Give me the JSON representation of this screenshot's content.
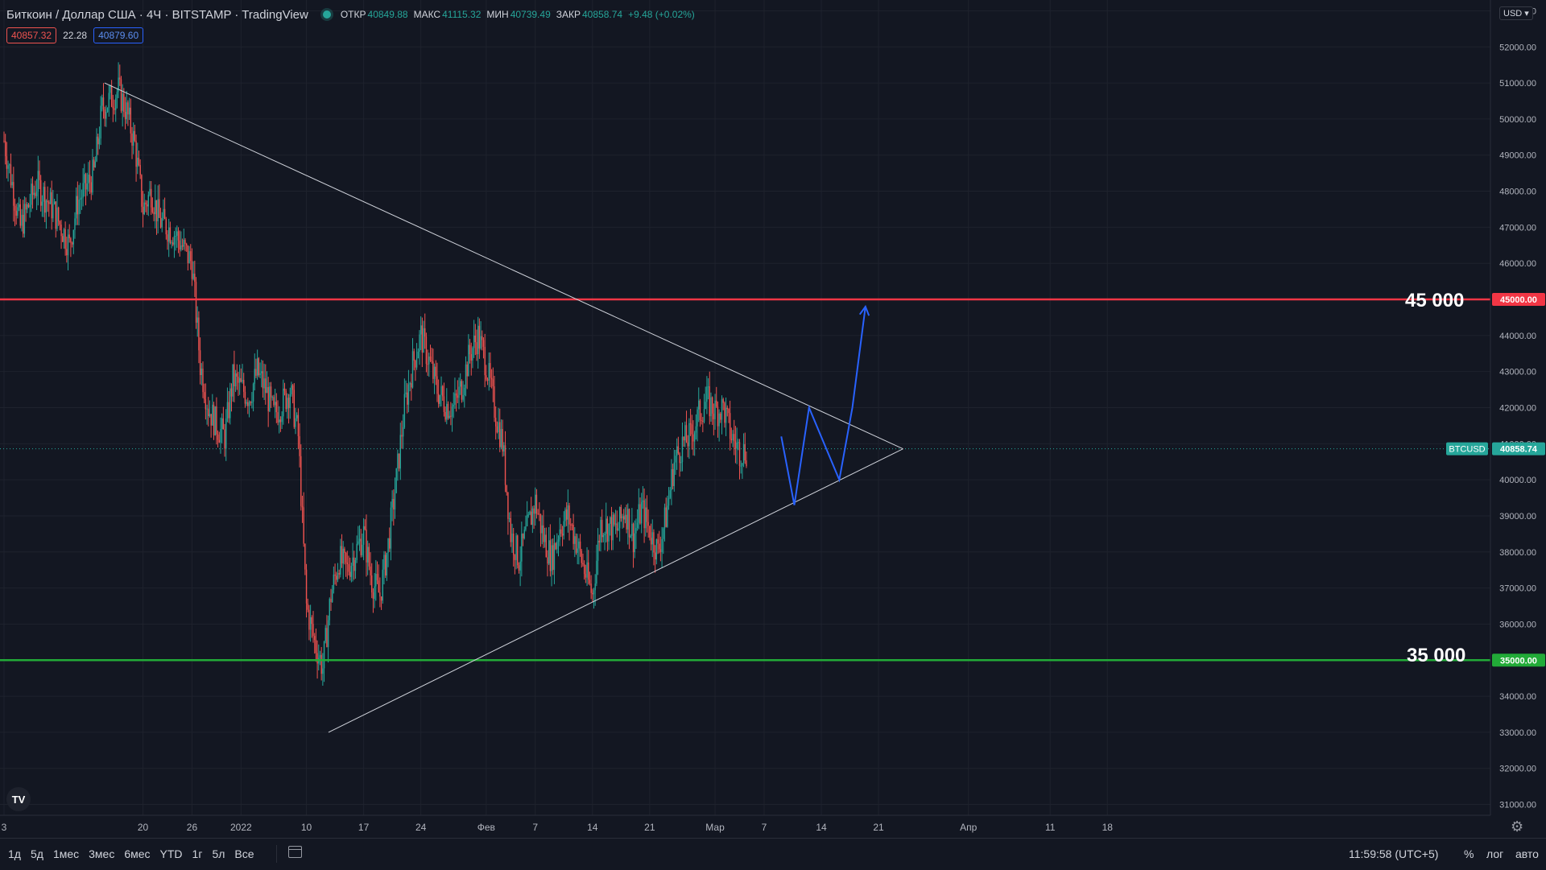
{
  "header": {
    "symbol": "Биткоин / Доллар США · 4Ч · BITSTAMP · TradingView",
    "open_label": "ОТКР",
    "open": "40849.88",
    "high_label": "МАКС",
    "high": "41115.32",
    "low_label": "МИН",
    "low": "40739.49",
    "close_label": "ЗАКР",
    "close": "40858.74",
    "change": "+9.48 (+0.02%)"
  },
  "quotes": {
    "sell": "40857.32",
    "spread": "22.28",
    "buy": "40879.60"
  },
  "currency_button": "USD",
  "annotations": {
    "resistance": "45 000",
    "support": "35 000"
  },
  "price_tags": {
    "resistance": "45000.00",
    "support": "35000.00",
    "current": "40858.74",
    "symbol": "BTCUSD"
  },
  "bottom": {
    "ranges": [
      "1д",
      "5д",
      "1мес",
      "3мес",
      "6мес",
      "YTD",
      "1г",
      "5л",
      "Все"
    ],
    "clock": "11:59:58 (UTC+5)",
    "percent": "%",
    "log": "лог",
    "auto": "авто"
  },
  "colors": {
    "up": "#26a69a",
    "down": "#ef5350",
    "resistance": "#f23645",
    "support": "#22ab38",
    "projection": "#2962ff",
    "trendline": "#d1d4dc"
  },
  "chart_data": {
    "type": "candlestick",
    "yticks": [
      "31000.00",
      "32000.00",
      "33000.00",
      "34000.00",
      "35000.00",
      "36000.00",
      "37000.00",
      "38000.00",
      "39000.00",
      "40000.00",
      "41000.00",
      "42000.00",
      "43000.00",
      "44000.00",
      "45000.00",
      "46000.00",
      "47000.00",
      "48000.00",
      "49000.00",
      "50000.00",
      "51000.00",
      "52000.00",
      "53000.00"
    ],
    "ylim": [
      30700,
      53300
    ],
    "xlim_days": [
      0,
      110
    ],
    "xticks": [
      {
        "day": 0,
        "label": "3"
      },
      {
        "day": 17,
        "label": "20"
      },
      {
        "day": 23,
        "label": "26"
      },
      {
        "day": 29,
        "label": "2022"
      },
      {
        "day": 37,
        "label": "10"
      },
      {
        "day": 44,
        "label": "17"
      },
      {
        "day": 51,
        "label": "24"
      },
      {
        "day": 59,
        "label": "Фев"
      },
      {
        "day": 65,
        "label": "7"
      },
      {
        "day": 72,
        "label": "14"
      },
      {
        "day": 79,
        "label": "21"
      },
      {
        "day": 87,
        "label": "Мар"
      },
      {
        "day": 93,
        "label": "7"
      },
      {
        "day": 100,
        "label": "14"
      },
      {
        "day": 107,
        "label": "21"
      },
      {
        "day": 118,
        "label": "Апр"
      },
      {
        "day": 128,
        "label": "11"
      },
      {
        "day": 135,
        "label": "18"
      }
    ],
    "price_path": [
      [
        0,
        49400
      ],
      [
        2,
        47000
      ],
      [
        4,
        48200
      ],
      [
        6,
        47500
      ],
      [
        8,
        46500
      ],
      [
        9,
        47700
      ],
      [
        11,
        48500
      ],
      [
        12,
        50300
      ],
      [
        14,
        50800
      ],
      [
        15,
        50200
      ],
      [
        16,
        49300
      ],
      [
        17,
        47500
      ],
      [
        18,
        48000
      ],
      [
        19,
        47200
      ],
      [
        21,
        46800
      ],
      [
        22,
        46400
      ],
      [
        23,
        46000
      ],
      [
        24,
        43200
      ],
      [
        25,
        42000
      ],
      [
        26,
        41500
      ],
      [
        27,
        41200
      ],
      [
        28,
        42800
      ],
      [
        30,
        42300
      ],
      [
        31,
        43000
      ],
      [
        32,
        42500
      ],
      [
        33,
        41800
      ],
      [
        34,
        42100
      ],
      [
        35,
        42500
      ],
      [
        36,
        41200
      ],
      [
        37,
        36500
      ],
      [
        38,
        35500
      ],
      [
        39,
        34800
      ],
      [
        40,
        36800
      ],
      [
        41,
        37800
      ],
      [
        42,
        37500
      ],
      [
        43,
        38000
      ],
      [
        44,
        38500
      ],
      [
        45,
        37200
      ],
      [
        46,
        36800
      ],
      [
        47,
        38200
      ],
      [
        48,
        40000
      ],
      [
        49,
        42000
      ],
      [
        50,
        43200
      ],
      [
        51,
        44000
      ],
      [
        52,
        43300
      ],
      [
        53,
        42500
      ],
      [
        54,
        42100
      ],
      [
        55,
        42000
      ],
      [
        56,
        42600
      ],
      [
        57,
        43500
      ],
      [
        58,
        44000
      ],
      [
        59,
        43200
      ],
      [
        60,
        42000
      ],
      [
        61,
        41000
      ],
      [
        62,
        38500
      ],
      [
        63,
        37800
      ],
      [
        64,
        38600
      ],
      [
        65,
        39400
      ],
      [
        66,
        38400
      ],
      [
        67,
        37800
      ],
      [
        68,
        38700
      ],
      [
        69,
        39000
      ],
      [
        70,
        38300
      ],
      [
        71,
        37500
      ],
      [
        72,
        36800
      ],
      [
        73,
        38800
      ],
      [
        74,
        38700
      ],
      [
        75,
        38600
      ],
      [
        76,
        39200
      ],
      [
        77,
        38400
      ],
      [
        78,
        39200
      ],
      [
        79,
        38600
      ],
      [
        80,
        38000
      ],
      [
        81,
        39000
      ],
      [
        82,
        40500
      ],
      [
        83,
        41000
      ],
      [
        84,
        41200
      ],
      [
        85,
        41800
      ],
      [
        86,
        42200
      ],
      [
        87,
        41900
      ],
      [
        88,
        42000
      ],
      [
        89,
        41200
      ],
      [
        90,
        40800
      ],
      [
        91,
        40800
      ]
    ],
    "lines": {
      "resistance": 45000,
      "support": 35000,
      "current": 40858.74,
      "triangle_upper": [
        [
          12.3,
          51000
        ],
        [
          110,
          40858
        ]
      ],
      "triangle_lower": [
        [
          39.7,
          33000
        ],
        [
          110,
          40858
        ]
      ],
      "projection": [
        [
          95.1,
          41200
        ],
        [
          96.7,
          39300
        ],
        [
          98.5,
          42000
        ],
        [
          102.2,
          40000
        ],
        [
          103.8,
          42000
        ],
        [
          105.4,
          44800
        ]
      ]
    }
  }
}
